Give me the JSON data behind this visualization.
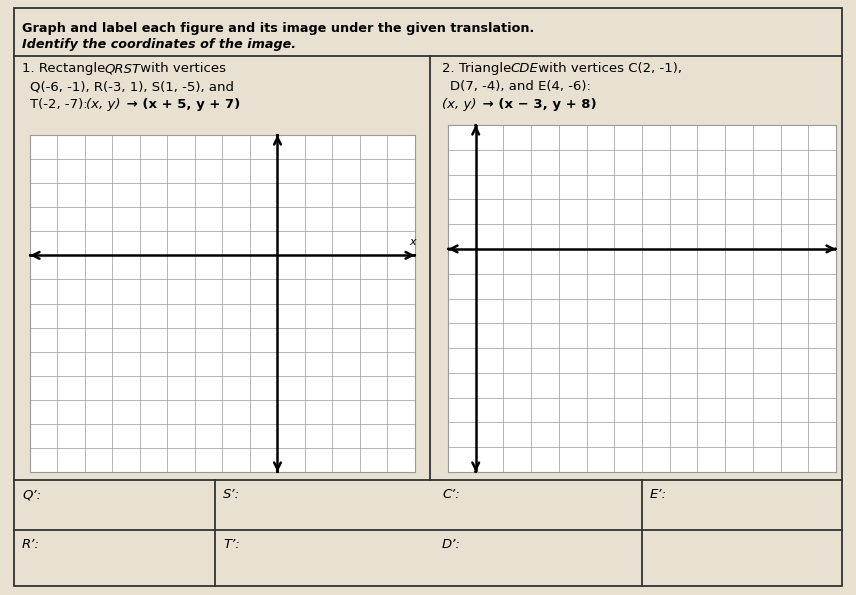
{
  "title_line1": "Graph and label each figure and its image under the given translation.",
  "title_line2": "Identify the coordinates of the image.",
  "p1_line1_a": "1. Rectangle ",
  "p1_line1_b": "QRST",
  "p1_line1_c": " with vertices",
  "p1_line2": "Q(-6, -1), R(-3, 1), S(1, -5), and",
  "p1_line3_a": "T(-2, -7): ",
  "p1_line3_b": "(x, y)",
  "p1_line3_c": " → (x + 5, y + 7)",
  "p2_line1_a": "2. Triangle ",
  "p2_line1_b": "CDE",
  "p2_line1_c": " with vertices C(2, -1),",
  "p2_line2_a": "D(7, -4), and ",
  "p2_line2_b": "E",
  "p2_line2_c": "(4, -6):",
  "p2_line3_a": "(x, y)",
  "p2_line3_b": " → (x − 3, y + 8)",
  "q_prime": "Q’:",
  "s_prime": "S’:",
  "c_prime": "C’:",
  "e_prime": "E’:",
  "r_prime": "R’:",
  "t_prime": "T’:",
  "d_prime": "D’:",
  "bg_color": "#e8e0d0",
  "grid_bg": "#ffffff",
  "grid_color": "#999999",
  "axis_color": "#000000",
  "text_color": "#000000",
  "border_color": "#333333"
}
